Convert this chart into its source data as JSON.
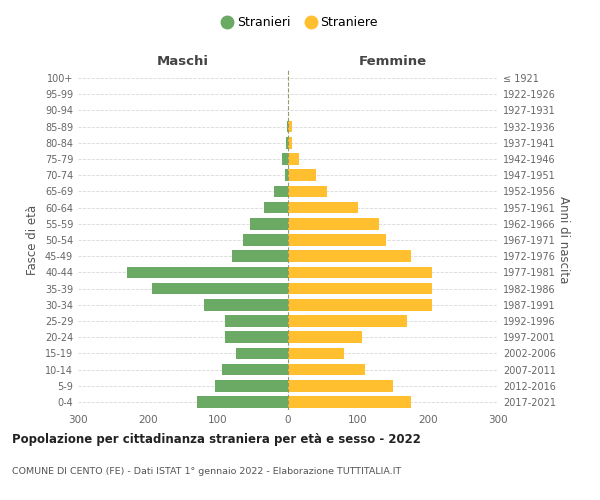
{
  "age_groups": [
    "100+",
    "95-99",
    "90-94",
    "85-89",
    "80-84",
    "75-79",
    "70-74",
    "65-69",
    "60-64",
    "55-59",
    "50-54",
    "45-49",
    "40-44",
    "35-39",
    "30-34",
    "25-29",
    "20-24",
    "15-19",
    "10-14",
    "5-9",
    "0-4"
  ],
  "birth_years": [
    "≤ 1921",
    "1922-1926",
    "1927-1931",
    "1932-1936",
    "1937-1941",
    "1942-1946",
    "1947-1951",
    "1952-1956",
    "1957-1961",
    "1962-1966",
    "1967-1971",
    "1972-1976",
    "1977-1981",
    "1982-1986",
    "1987-1991",
    "1992-1996",
    "1997-2001",
    "2002-2006",
    "2007-2011",
    "2012-2016",
    "2017-2021"
  ],
  "males": [
    0,
    0,
    0,
    2,
    3,
    8,
    5,
    20,
    35,
    55,
    65,
    80,
    230,
    195,
    120,
    90,
    90,
    75,
    95,
    105,
    130
  ],
  "females": [
    0,
    0,
    0,
    5,
    5,
    15,
    40,
    55,
    100,
    130,
    140,
    175,
    205,
    205,
    205,
    170,
    105,
    80,
    110,
    150,
    175
  ],
  "male_color": "#6aaa64",
  "female_color": "#ffbf2f",
  "male_label": "Stranieri",
  "female_label": "Straniere",
  "title": "Popolazione per cittadinanza straniera per età e sesso - 2022",
  "subtitle": "COMUNE DI CENTO (FE) - Dati ISTAT 1° gennaio 2022 - Elaborazione TUTTITALIA.IT",
  "xlabel_left": "Maschi",
  "xlabel_right": "Femmine",
  "ylabel_left": "Fasce di età",
  "ylabel_right": "Anni di nascita",
  "xlim": 300,
  "background_color": "#ffffff",
  "grid_color": "#d8d8d8"
}
